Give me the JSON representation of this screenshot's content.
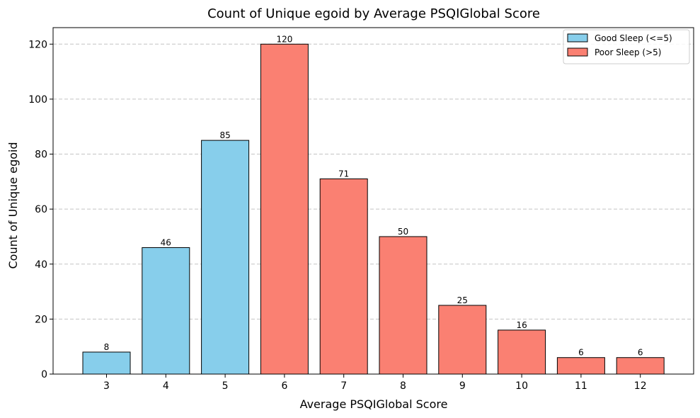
{
  "chart_data": {
    "type": "bar",
    "title": "Count of Unique egoid by Average PSQIGlobal Score",
    "xlabel": "Average PSQIGlobal Score",
    "ylabel": "Count of Unique egoid",
    "categories": [
      "3",
      "4",
      "5",
      "6",
      "7",
      "8",
      "9",
      "10",
      "11",
      "12"
    ],
    "values": [
      8,
      46,
      85,
      120,
      71,
      50,
      25,
      16,
      6,
      6
    ],
    "groups": [
      "good",
      "good",
      "good",
      "poor",
      "poor",
      "poor",
      "poor",
      "poor",
      "poor",
      "poor"
    ],
    "ylim": [
      0,
      126
    ],
    "yticks": [
      0,
      20,
      40,
      60,
      80,
      100,
      120
    ],
    "grid": "y-dashed",
    "legend_position": "top-right",
    "legend": [
      {
        "key": "good",
        "label": "Good Sleep (<=5)",
        "color": "#87CEEB"
      },
      {
        "key": "poor",
        "label": "Poor Sleep (>5)",
        "color": "#FA8072"
      }
    ]
  }
}
